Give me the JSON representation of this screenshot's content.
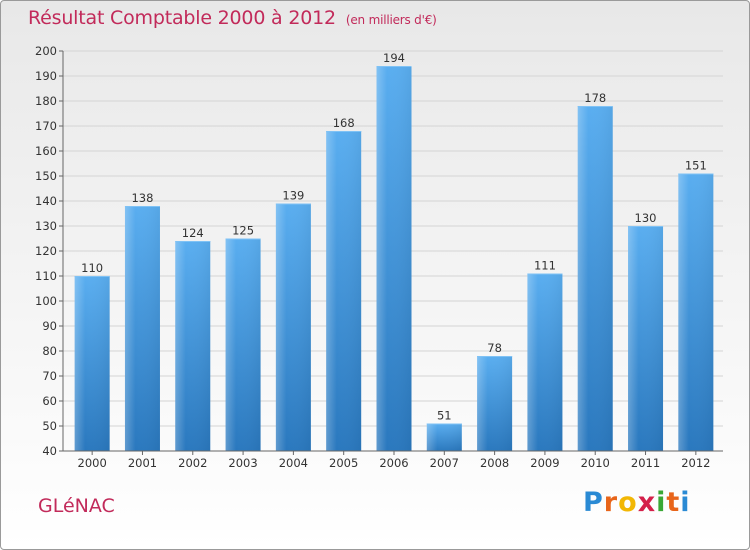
{
  "title": "Résultat Comptable 2000 à 2012",
  "unit": "(en milliers d'€)",
  "city": "GLéNAC",
  "brand": {
    "letters": [
      "P",
      "r",
      "o",
      "x",
      "i",
      "t",
      "i"
    ],
    "colors": [
      "#2a8ad4",
      "#e8651a",
      "#f2b705",
      "#d4204a",
      "#3aa835",
      "#e8651a",
      "#2a8ad4"
    ]
  },
  "colors": {
    "bar": "#3a93d6",
    "title": "#c22a5a"
  },
  "chart_data": {
    "type": "bar",
    "title": "Résultat Comptable 2000 à 2012",
    "subtitle": "(en milliers d'€)",
    "xlabel": "",
    "ylabel": "",
    "categories": [
      "2000",
      "2001",
      "2002",
      "2003",
      "2004",
      "2005",
      "2006",
      "2007",
      "2008",
      "2009",
      "2010",
      "2011",
      "2012"
    ],
    "values": [
      110,
      138,
      124,
      125,
      139,
      168,
      194,
      51,
      78,
      111,
      178,
      130,
      151
    ],
    "ylim": [
      40,
      200
    ],
    "yticks": [
      40,
      50,
      60,
      70,
      80,
      90,
      100,
      110,
      120,
      130,
      140,
      150,
      160,
      170,
      180,
      190,
      200
    ],
    "grid": true,
    "legend": "none"
  }
}
